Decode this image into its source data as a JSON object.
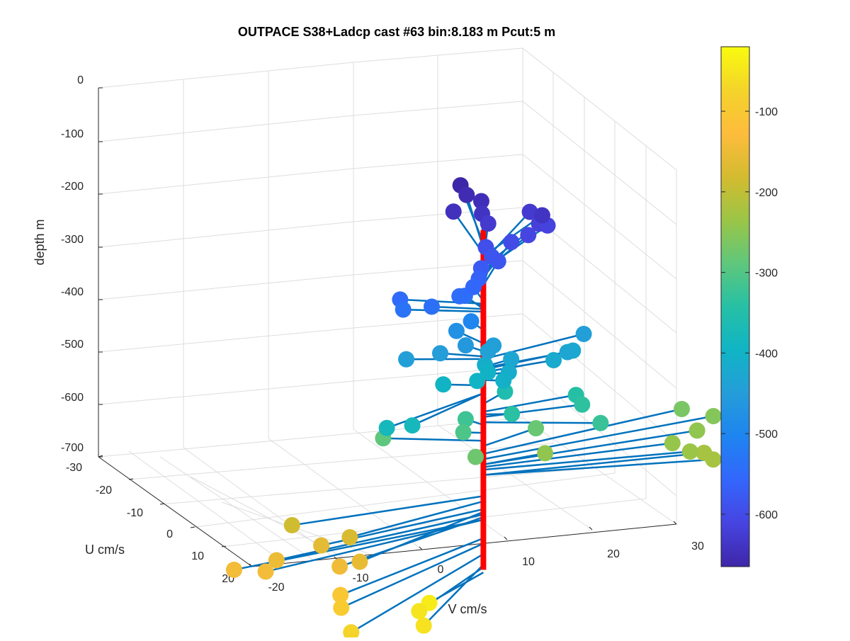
{
  "chart_data": {
    "type": "scatter",
    "title": "OUTPACE S38+Ladcp cast #63 bin:8.183 m  Pcut:5 m",
    "zlabel": "depth m",
    "xlabel": "U cm/s",
    "ylabel": "V cm/s",
    "z_ticks": [
      "0",
      "-100",
      "-200",
      "-300",
      "-400",
      "-500",
      "-600",
      "-700"
    ],
    "u_ticks": [
      "-30",
      "-20",
      "-10",
      "0",
      "10",
      "20"
    ],
    "v_ticks": [
      "-20",
      "-10",
      "0",
      "10",
      "20",
      "30"
    ],
    "colorbar_ticks": [
      "-100",
      "-200",
      "-300",
      "-400",
      "-500",
      "-600"
    ],
    "zlim": [
      -700,
      0
    ],
    "ulim": [
      -30,
      20
    ],
    "vlim": [
      -20,
      30
    ],
    "colorbar_range": [
      -665,
      -20
    ],
    "colormap": [
      "#3e26a8",
      "#4744e1",
      "#3366fc",
      "#1e84f0",
      "#259dd9",
      "#10b4c5",
      "#26c0a5",
      "#5fc77c",
      "#9bc546",
      "#d4bb2f",
      "#fdbc3c",
      "#f4d42a",
      "#f9fb0e"
    ],
    "colors": {
      "profile_line": "#ff0000",
      "vector_line": "#0072bd"
    },
    "grid": true,
    "points": [
      {
        "u": -10,
        "v": -10,
        "depth": -40
      },
      {
        "u": -15,
        "v": -13,
        "depth": -50
      },
      {
        "u": -22,
        "v": -15,
        "depth": -55
      },
      {
        "u": -26,
        "v": -25,
        "depth": -75
      },
      {
        "u": -20,
        "v": -24,
        "depth": -95
      },
      {
        "u": -17,
        "v": -23,
        "depth": -105
      },
      {
        "u": -12,
        "v": -30,
        "depth": -140
      },
      {
        "u": -10,
        "v": -33,
        "depth": -140
      },
      {
        "u": -14,
        "v": -22,
        "depth": -145
      },
      {
        "u": -10,
        "v": -28,
        "depth": -150
      },
      {
        "u": -15,
        "v": -20,
        "depth": -155
      },
      {
        "u": -8,
        "v": -22,
        "depth": -160
      },
      {
        "u": -9,
        "v": -19,
        "depth": -175
      },
      {
        "u": -4,
        "v": -24,
        "depth": -185
      },
      {
        "u": 0,
        "v": 26,
        "depth": -225
      },
      {
        "u": -3,
        "v": 26,
        "depth": -225
      },
      {
        "u": -1,
        "v": 24,
        "depth": -235
      },
      {
        "u": 2,
        "v": 23,
        "depth": -240
      },
      {
        "u": 5,
        "v": 27,
        "depth": -245
      },
      {
        "u": 8,
        "v": 30,
        "depth": -255
      },
      {
        "u": 10,
        "v": 27,
        "depth": -265
      },
      {
        "u": 2,
        "v": 8,
        "depth": -245
      },
      {
        "u": 5,
        "v": 8,
        "depth": -280
      },
      {
        "u": -3,
        "v": -2,
        "depth": -275
      },
      {
        "u": 1,
        "v": -2,
        "depth": -305
      },
      {
        "u": 3,
        "v": -1,
        "depth": -320
      },
      {
        "u": 5,
        "v": -10,
        "depth": -290
      },
      {
        "u": -5,
        "v": 12,
        "depth": -325
      },
      {
        "u": 1,
        "v": 12,
        "depth": -335
      },
      {
        "u": 3,
        "v": 12,
        "depth": -345
      },
      {
        "u": -1,
        "v": 3,
        "depth": -340
      },
      {
        "u": 4,
        "v": 4,
        "depth": -360
      },
      {
        "u": -10,
        "v": -15,
        "depth": -380
      },
      {
        "u": -10,
        "v": -12,
        "depth": -380
      },
      {
        "u": 2,
        "v": -4,
        "depth": -395
      },
      {
        "u": 2,
        "v": 0,
        "depth": -395
      },
      {
        "u": 4,
        "v": 2,
        "depth": -400
      },
      {
        "u": -1,
        "v": 2,
        "depth": -405
      },
      {
        "u": 5,
        "v": 2,
        "depth": -410
      },
      {
        "u": 0,
        "v": 3,
        "depth": -415
      },
      {
        "u": 2,
        "v": 9,
        "depth": -420
      },
      {
        "u": 4,
        "v": 12,
        "depth": -425
      },
      {
        "u": 3,
        "v": 11,
        "depth": -428
      },
      {
        "u": 6,
        "v": 14,
        "depth": -445
      },
      {
        "u": 2,
        "v": 4,
        "depth": -430
      },
      {
        "u": 4,
        "v": 2,
        "depth": -440
      },
      {
        "u": 5,
        "v": 3,
        "depth": -445
      },
      {
        "u": 3,
        "v": -8,
        "depth": -445
      },
      {
        "u": 3,
        "v": -4,
        "depth": -450
      },
      {
        "u": 3,
        "v": -1,
        "depth": -460
      },
      {
        "u": 6,
        "v": -1,
        "depth": -475
      },
      {
        "u": 4,
        "v": 0,
        "depth": -500
      },
      {
        "u": 4,
        "v": -8,
        "depth": -535
      },
      {
        "u": 3,
        "v": -5,
        "depth": -540
      },
      {
        "u": 5,
        "v": -1,
        "depth": -545
      },
      {
        "u": 6,
        "v": 0,
        "depth": -540
      },
      {
        "u": 5,
        "v": -8,
        "depth": -550
      },
      {
        "u": 6,
        "v": 1,
        "depth": -555
      },
      {
        "u": 7,
        "v": 2,
        "depth": -565
      },
      {
        "u": 9,
        "v": 3,
        "depth": -575
      },
      {
        "u": 9,
        "v": 5,
        "depth": -585
      },
      {
        "u": 11,
        "v": 5,
        "depth": -585
      },
      {
        "u": 13,
        "v": 5,
        "depth": -595
      },
      {
        "u": 13,
        "v": 8,
        "depth": -600
      },
      {
        "u": 13,
        "v": 10,
        "depth": -610
      },
      {
        "u": 15,
        "v": 12,
        "depth": -620
      },
      {
        "u": 15,
        "v": 13,
        "depth": -615
      },
      {
        "u": 18,
        "v": 12,
        "depth": -630
      },
      {
        "u": 14,
        "v": 12,
        "depth": -640
      },
      {
        "u": 15,
        "v": 6,
        "depth": -630
      },
      {
        "u": 17,
        "v": 6,
        "depth": -640
      },
      {
        "u": 18,
        "v": 3,
        "depth": -645
      },
      {
        "u": 20,
        "v": 7,
        "depth": -650
      },
      {
        "u": 22,
        "v": 6,
        "depth": -655
      },
      {
        "u": 24,
        "v": 6,
        "depth": -665
      }
    ]
  }
}
